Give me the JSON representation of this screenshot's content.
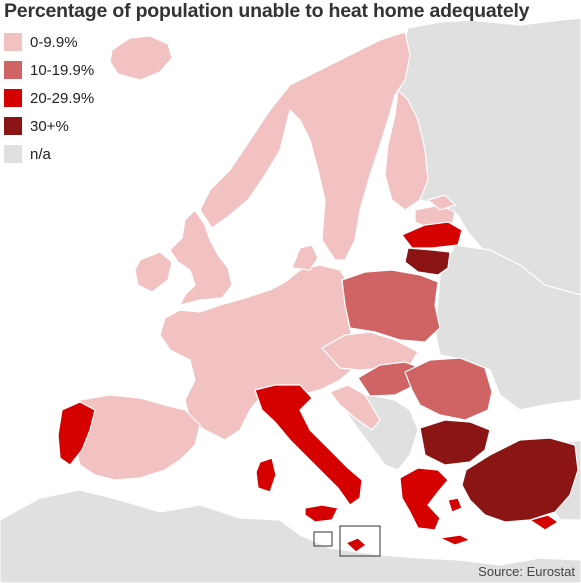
{
  "title": "Percentage of population unable to heat home adequately",
  "legend": [
    {
      "label": "0-9.9%",
      "color": "#f2c1c1"
    },
    {
      "label": "10-19.9%",
      "color": "#d06464"
    },
    {
      "label": "20-29.9%",
      "color": "#d50000"
    },
    {
      "label": "30+%",
      "color": "#8b1515"
    },
    {
      "label": "n/a",
      "color": "#e0e0e0"
    }
  ],
  "source": "Source: Eurostat",
  "colors": {
    "sea": "#ffffff",
    "border": "#ffffff",
    "inset_box": "#333333"
  }
}
